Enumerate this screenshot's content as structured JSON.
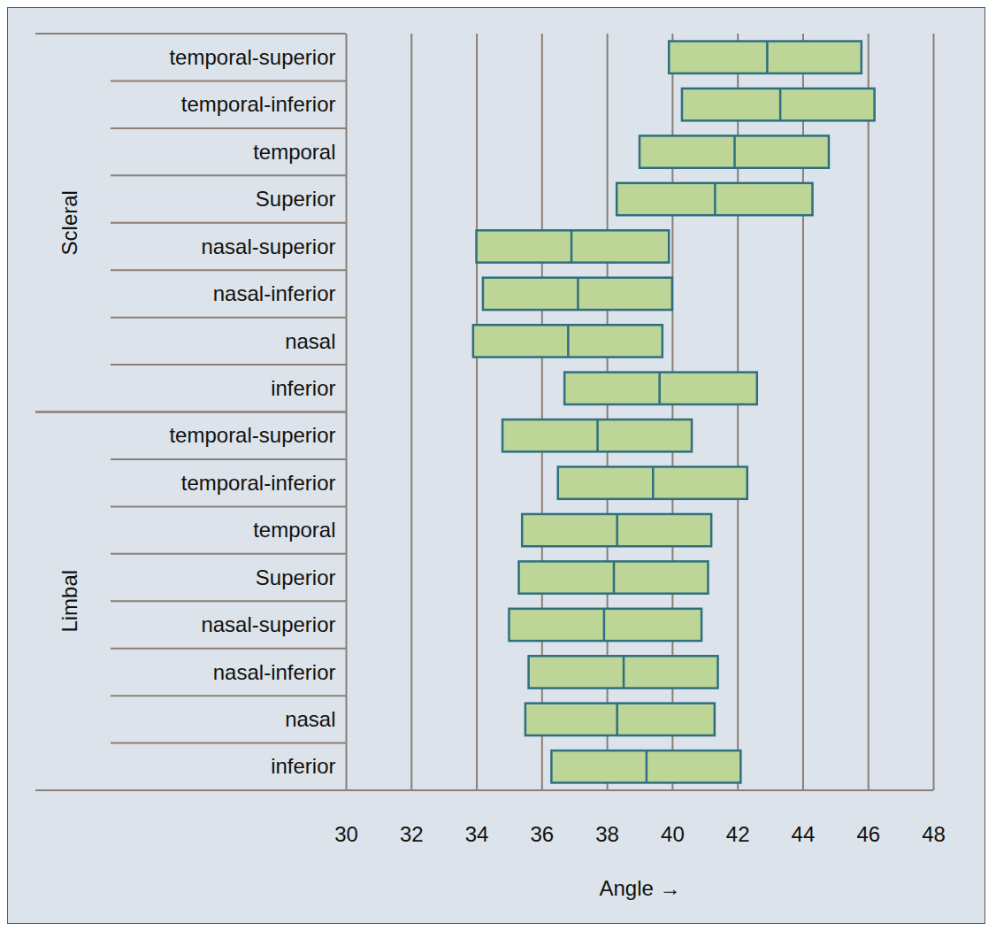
{
  "chart_data": {
    "type": "range",
    "orientation": "horizontal",
    "grid": true,
    "xlabel": "Angle",
    "xlim": [
      30,
      48
    ],
    "xticks": [
      30,
      32,
      34,
      36,
      38,
      40,
      42,
      44,
      46,
      48
    ],
    "color": "#bdd597",
    "series": [
      {
        "name": "Scleral",
        "categories": [
          "temporal-superior",
          "temporal-inferior",
          "temporal",
          "Superior",
          "nasal-superior",
          "nasal-inferior",
          "nasal",
          "inferior"
        ],
        "low": [
          39.9,
          40.3,
          39.0,
          38.3,
          34.0,
          34.2,
          33.9,
          36.7
        ],
        "median": [
          42.9,
          43.3,
          41.9,
          41.3,
          36.9,
          37.1,
          36.8,
          39.6
        ],
        "high": [
          45.8,
          46.2,
          44.8,
          44.3,
          39.9,
          40.0,
          39.7,
          42.6
        ]
      },
      {
        "name": "Limbal",
        "categories": [
          "temporal-superior",
          "temporal-inferior",
          "temporal",
          "Superior",
          "nasal-superior",
          "nasal-inferior",
          "nasal",
          "inferior"
        ],
        "low": [
          34.8,
          36.5,
          35.4,
          35.3,
          35.0,
          35.6,
          35.5,
          36.3
        ],
        "median": [
          37.7,
          39.4,
          38.3,
          38.2,
          37.9,
          38.5,
          38.3,
          39.2
        ],
        "high": [
          40.6,
          42.3,
          41.2,
          41.1,
          40.9,
          41.4,
          41.3,
          42.1
        ]
      }
    ]
  }
}
